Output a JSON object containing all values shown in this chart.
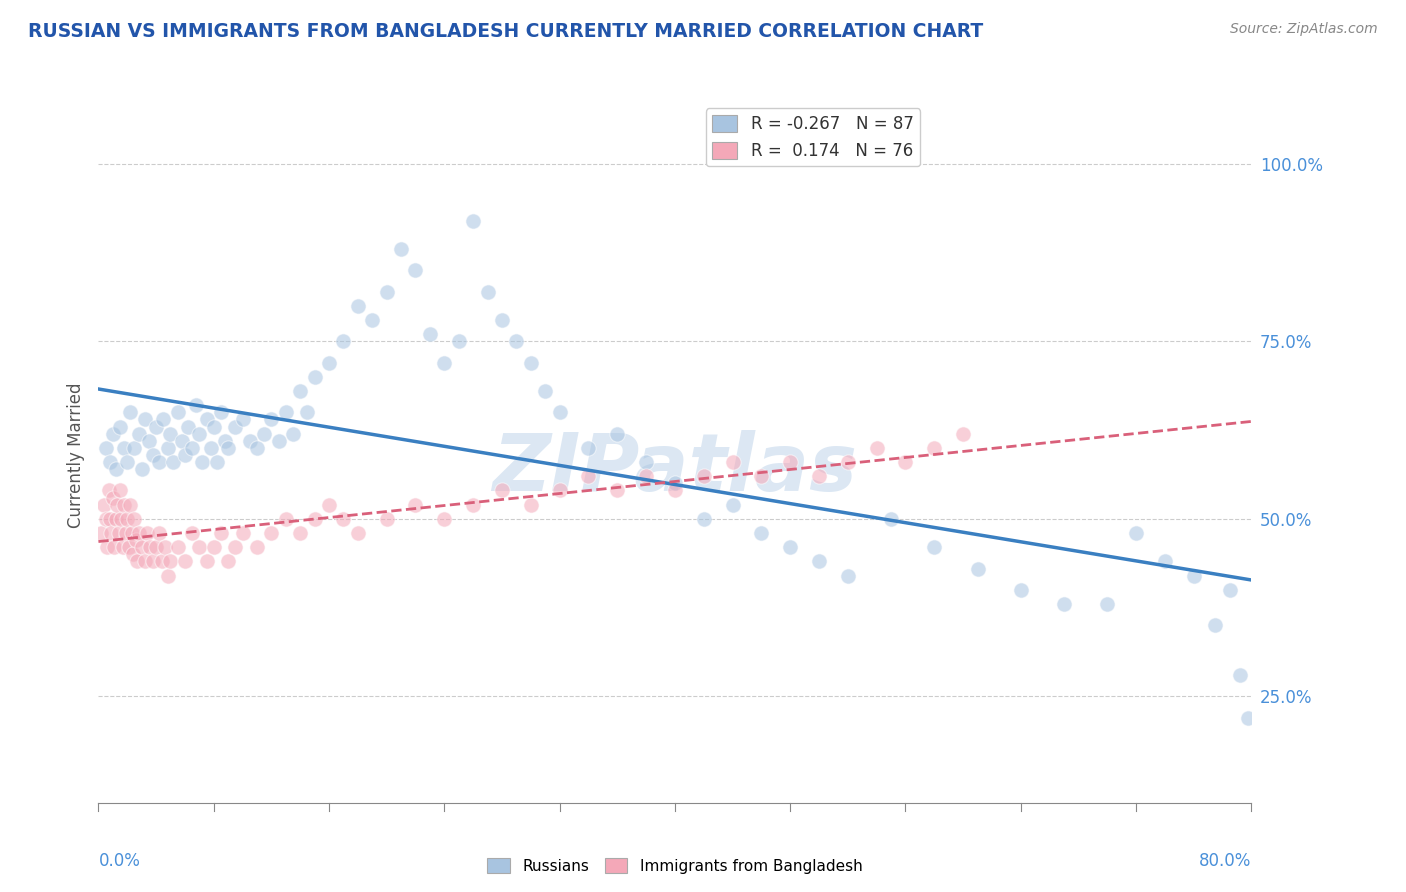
{
  "title": "RUSSIAN VS IMMIGRANTS FROM BANGLADESH CURRENTLY MARRIED CORRELATION CHART",
  "source_text": "Source: ZipAtlas.com",
  "ylabel": "Currently Married",
  "y_ticks": [
    0.25,
    0.5,
    0.75,
    1.0
  ],
  "y_tick_labels": [
    "25.0%",
    "50.0%",
    "75.0%",
    "100.0%"
  ],
  "xlim": [
    0.0,
    0.8
  ],
  "ylim": [
    0.1,
    1.08
  ],
  "legend_blue_r": "-0.267",
  "legend_blue_n": "87",
  "legend_pink_r": "0.174",
  "legend_pink_n": "76",
  "blue_dot_color": "#a8c4e0",
  "pink_dot_color": "#f4a8b8",
  "blue_line_color": "#3a7fc1",
  "pink_line_color": "#d9607a",
  "watermark_text": "ZIPatlas",
  "watermark_color": "#c5d8ec",
  "title_color": "#2255aa",
  "source_color": "#888888",
  "background_color": "#ffffff",
  "grid_color": "#cccccc",
  "axis_color": "#888888",
  "tick_label_color": "#4a90d9",
  "dot_size": 120,
  "dot_alpha": 0.55,
  "dot_edge_color": "white",
  "dot_edge_width": 0.8,
  "blue_x": [
    0.005,
    0.008,
    0.01,
    0.012,
    0.015,
    0.018,
    0.02,
    0.022,
    0.025,
    0.028,
    0.03,
    0.032,
    0.035,
    0.038,
    0.04,
    0.042,
    0.045,
    0.048,
    0.05,
    0.052,
    0.055,
    0.058,
    0.06,
    0.062,
    0.065,
    0.068,
    0.07,
    0.072,
    0.075,
    0.078,
    0.08,
    0.082,
    0.085,
    0.088,
    0.09,
    0.095,
    0.1,
    0.105,
    0.11,
    0.115,
    0.12,
    0.125,
    0.13,
    0.135,
    0.14,
    0.145,
    0.15,
    0.16,
    0.17,
    0.18,
    0.19,
    0.2,
    0.21,
    0.22,
    0.23,
    0.24,
    0.25,
    0.26,
    0.27,
    0.28,
    0.29,
    0.3,
    0.31,
    0.32,
    0.34,
    0.36,
    0.38,
    0.4,
    0.42,
    0.44,
    0.46,
    0.48,
    0.5,
    0.52,
    0.55,
    0.58,
    0.61,
    0.64,
    0.67,
    0.7,
    0.72,
    0.74,
    0.76,
    0.775,
    0.785,
    0.792,
    0.798
  ],
  "blue_y": [
    0.6,
    0.58,
    0.62,
    0.57,
    0.63,
    0.6,
    0.58,
    0.65,
    0.6,
    0.62,
    0.57,
    0.64,
    0.61,
    0.59,
    0.63,
    0.58,
    0.64,
    0.6,
    0.62,
    0.58,
    0.65,
    0.61,
    0.59,
    0.63,
    0.6,
    0.66,
    0.62,
    0.58,
    0.64,
    0.6,
    0.63,
    0.58,
    0.65,
    0.61,
    0.6,
    0.63,
    0.64,
    0.61,
    0.6,
    0.62,
    0.64,
    0.61,
    0.65,
    0.62,
    0.68,
    0.65,
    0.7,
    0.72,
    0.75,
    0.8,
    0.78,
    0.82,
    0.88,
    0.85,
    0.76,
    0.72,
    0.75,
    0.92,
    0.82,
    0.78,
    0.75,
    0.72,
    0.68,
    0.65,
    0.6,
    0.62,
    0.58,
    0.55,
    0.5,
    0.52,
    0.48,
    0.46,
    0.44,
    0.42,
    0.5,
    0.46,
    0.43,
    0.4,
    0.38,
    0.38,
    0.48,
    0.44,
    0.42,
    0.35,
    0.4,
    0.28,
    0.22
  ],
  "pink_x": [
    0.002,
    0.004,
    0.005,
    0.006,
    0.007,
    0.008,
    0.009,
    0.01,
    0.011,
    0.012,
    0.013,
    0.014,
    0.015,
    0.016,
    0.017,
    0.018,
    0.019,
    0.02,
    0.021,
    0.022,
    0.023,
    0.024,
    0.025,
    0.026,
    0.027,
    0.028,
    0.03,
    0.032,
    0.034,
    0.036,
    0.038,
    0.04,
    0.042,
    0.044,
    0.046,
    0.048,
    0.05,
    0.055,
    0.06,
    0.065,
    0.07,
    0.075,
    0.08,
    0.085,
    0.09,
    0.095,
    0.1,
    0.11,
    0.12,
    0.13,
    0.14,
    0.15,
    0.16,
    0.17,
    0.18,
    0.2,
    0.22,
    0.24,
    0.26,
    0.28,
    0.3,
    0.32,
    0.34,
    0.36,
    0.38,
    0.4,
    0.42,
    0.44,
    0.46,
    0.48,
    0.5,
    0.52,
    0.54,
    0.56,
    0.58,
    0.6
  ],
  "pink_y": [
    0.48,
    0.52,
    0.5,
    0.46,
    0.54,
    0.5,
    0.48,
    0.53,
    0.46,
    0.5,
    0.52,
    0.48,
    0.54,
    0.5,
    0.46,
    0.52,
    0.48,
    0.5,
    0.46,
    0.52,
    0.48,
    0.45,
    0.5,
    0.47,
    0.44,
    0.48,
    0.46,
    0.44,
    0.48,
    0.46,
    0.44,
    0.46,
    0.48,
    0.44,
    0.46,
    0.42,
    0.44,
    0.46,
    0.44,
    0.48,
    0.46,
    0.44,
    0.46,
    0.48,
    0.44,
    0.46,
    0.48,
    0.46,
    0.48,
    0.5,
    0.48,
    0.5,
    0.52,
    0.5,
    0.48,
    0.5,
    0.52,
    0.5,
    0.52,
    0.54,
    0.52,
    0.54,
    0.56,
    0.54,
    0.56,
    0.54,
    0.56,
    0.58,
    0.56,
    0.58,
    0.56,
    0.58,
    0.6,
    0.58,
    0.6,
    0.62
  ]
}
